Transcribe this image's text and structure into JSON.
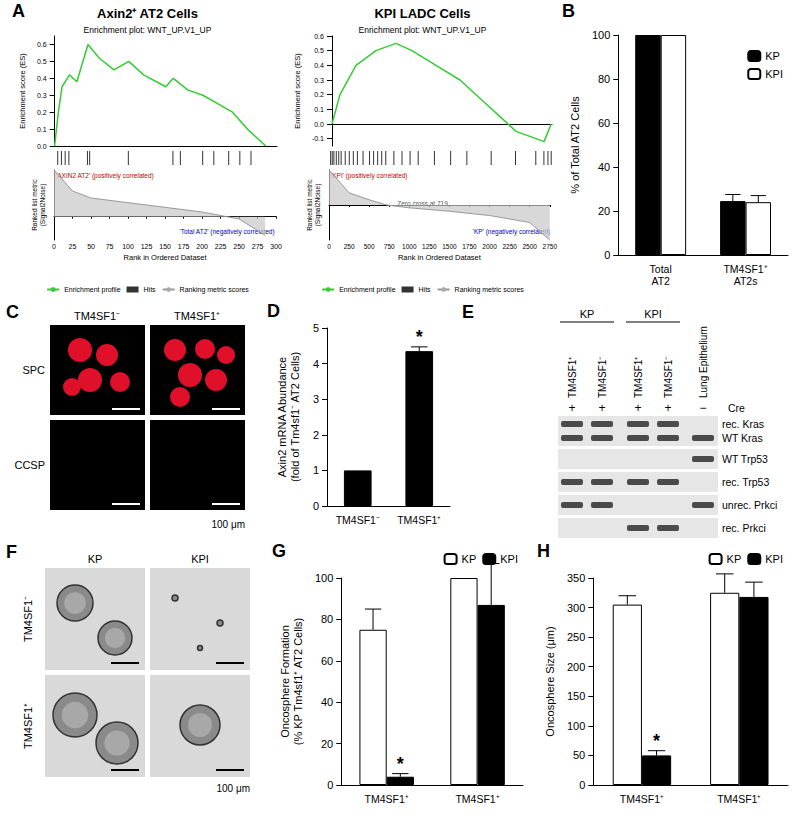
{
  "chart_data": [
    {
      "panel": "A",
      "type": "gsea",
      "heading": "Axin2⁺ AT2 Cells",
      "title": "Enrichment plot: WNT_UP.V1_UP",
      "x": [
        0,
        5,
        10,
        20,
        30,
        45,
        60,
        80,
        100,
        120,
        150,
        160,
        180,
        200,
        220,
        240,
        260,
        285
      ],
      "values": [
        0,
        0.2,
        0.35,
        0.42,
        0.38,
        0.6,
        0.52,
        0.45,
        0.5,
        0.42,
        0.35,
        0.4,
        0.33,
        0.3,
        0.25,
        0.2,
        0.1,
        0
      ],
      "hits": [
        5,
        10,
        15,
        20,
        45,
        48,
        100,
        160,
        170,
        200,
        215,
        235,
        250,
        265
      ],
      "metric_x": [
        0,
        25,
        50,
        100,
        150,
        200,
        250,
        285
      ],
      "metric": [
        1,
        0.55,
        0.4,
        0.3,
        0.2,
        0.1,
        -0.05,
        -0.4
      ],
      "metric_lim": [
        -0.5,
        1
      ],
      "xlim": [
        0,
        300
      ],
      "xticks": [
        0,
        25,
        50,
        75,
        100,
        125,
        150,
        175,
        200,
        225,
        250,
        275,
        300
      ],
      "ylim": [
        0,
        0.65
      ],
      "yticks": [
        {
          "value": 0,
          "label": "0.0"
        },
        {
          "value": 0.1,
          "label": "0.1"
        },
        {
          "value": 0.2,
          "label": "0.2"
        },
        {
          "value": 0.3,
          "label": "0.3"
        },
        {
          "value": 0.4,
          "label": "0.4"
        },
        {
          "value": 0.5,
          "label": "0.5"
        },
        {
          "value": 0.6,
          "label": "0.6"
        }
      ],
      "xlabel": "Rank in Ordered Dataset",
      "ylabel": "Enrichment score (ES)",
      "metric_label": "Ranked list metric\n(Signal2Noise)",
      "legend_labels": [
        "Enrichment profile",
        "Hits",
        "Ranking metric scores"
      ],
      "pos_label": "'AXIN2 AT2' (positively correlated)",
      "neg_label": "'Total AT2' (negatively correlated)",
      "color": "#33cc33",
      "grid": false
    },
    {
      "type": "gsea",
      "heading": "KPI LADC Cells",
      "title": "Enrichment plot: WNT_UP.V1_UP",
      "x": [
        0,
        100,
        300,
        550,
        800,
        1000,
        1300,
        1600,
        1900,
        2100,
        2300,
        2550,
        2650,
        2740
      ],
      "values": [
        0,
        0.2,
        0.4,
        0.5,
        0.55,
        0.5,
        0.4,
        0.3,
        0.15,
        0.05,
        -0.05,
        -0.1,
        -0.12,
        0
      ],
      "hits": [
        20,
        40,
        60,
        90,
        120,
        150,
        200,
        250,
        300,
        350,
        420,
        500,
        550,
        600,
        650,
        700,
        800,
        900,
        1000,
        1100,
        1300,
        1500,
        1700,
        2000,
        2300,
        2550,
        2650,
        2700,
        2740
      ],
      "metric_x": [
        0,
        250,
        500,
        719,
        1000,
        1500,
        2000,
        2500,
        2750
      ],
      "metric": [
        1,
        0.35,
        0.15,
        0,
        -0.08,
        -0.18,
        -0.3,
        -0.5,
        -1
      ],
      "metric_lim": [
        -1,
        1
      ],
      "xlim": [
        0,
        2750
      ],
      "xticks": [
        0,
        250,
        500,
        750,
        1000,
        1250,
        1500,
        1750,
        2000,
        2250,
        2500,
        2750
      ],
      "ylim": [
        -0.15,
        0.6
      ],
      "yticks": [
        {
          "value": -0.1,
          "label": "-0.1"
        },
        {
          "value": 0,
          "label": "0.0"
        },
        {
          "value": 0.1,
          "label": "0.1"
        },
        {
          "value": 0.2,
          "label": "0.2"
        },
        {
          "value": 0.3,
          "label": "0.3"
        },
        {
          "value": 0.4,
          "label": "0.4"
        },
        {
          "value": 0.5,
          "label": "0.5"
        },
        {
          "value": 0.6,
          "label": "0.6"
        }
      ],
      "xlabel": "Rank in Ordered Dataset",
      "ylabel": "Enrichment score (ES)",
      "metric_label": "Ranked list metric\n(Signal2Noise)",
      "legend_labels": [
        "Enrichment profile",
        "Hits",
        "Ranking metric scores"
      ],
      "pos_label": "'KPI' (positively correlated)",
      "neg_label": "'KP' (negatively correlated)",
      "zero_cross": "Zero cross at 719",
      "color": "#33cc33",
      "grid": false
    },
    {
      "panel": "B",
      "type": "bar",
      "categories": [
        "Total\nAT2",
        "TM4SF1⁺\nAT2s"
      ],
      "series": [
        {
          "name": "KP",
          "color": "#000000",
          "values": [
            100,
            24.5
          ],
          "errors": [
            0,
            3
          ]
        },
        {
          "name": "KPI",
          "color": "#ffffff",
          "values": [
            100,
            24
          ],
          "errors": [
            0,
            3
          ]
        }
      ],
      "ylabel": "% of Total AT2 Cells",
      "ylim": [
        0,
        100
      ],
      "yticks": [
        0,
        20,
        40,
        60,
        80,
        100
      ],
      "legend": "upper right",
      "grid": false
    },
    {
      "panel": "D",
      "type": "bar",
      "categories": [
        "TM4SF1⁻",
        "TM4SF1⁺"
      ],
      "values": [
        1,
        4.35
      ],
      "errors": [
        0,
        0.12
      ],
      "color": "#000000",
      "annotations": [
        {
          "text": "*",
          "index": 1
        }
      ],
      "ylabel": "Axin2 mRNA Abundance\n(fold of Tm4sf1⁻ AT2 Cells)",
      "ylim": [
        0,
        5
      ],
      "yticks": [
        0,
        1,
        2,
        3,
        4,
        5
      ],
      "grid": false
    },
    {
      "panel": "G",
      "type": "bar",
      "categories": [
        "TM4SF1⁺",
        "TM4SF1⁺"
      ],
      "series": [
        {
          "name": "KP",
          "color": "#ffffff",
          "values": [
            75,
            100
          ],
          "errors": [
            10,
            0
          ]
        },
        {
          "name": "KPI",
          "color": "#000000",
          "values": [
            4,
            87
          ],
          "errors": [
            1.5,
            20
          ]
        }
      ],
      "annotations": [
        {
          "text": "*",
          "series": "KPI",
          "index": 0
        }
      ],
      "ylabel": "Oncosphere Formation\n(% KP Tm4sf1⁺ AT2 Cells)",
      "ylim": [
        0,
        100
      ],
      "yticks": [
        0,
        20,
        40,
        60,
        80,
        100
      ],
      "legend": "upper right",
      "grid": false
    },
    {
      "panel": "H",
      "type": "bar",
      "categories": [
        "TM4SF1⁺",
        "TM4SF1⁺"
      ],
      "series": [
        {
          "name": "KP",
          "color": "#ffffff",
          "values": [
            305,
            325
          ],
          "errors": [
            15,
            32
          ]
        },
        {
          "name": "KPI",
          "color": "#000000",
          "values": [
            50,
            318
          ],
          "errors": [
            8,
            25
          ]
        }
      ],
      "annotations": [
        {
          "text": "*",
          "series": "KPI",
          "index": 0
        }
      ],
      "ylabel": "Oncosphere Size (μm)",
      "ylim": [
        0,
        350
      ],
      "yticks": [
        0,
        50,
        100,
        150,
        200,
        250,
        300,
        350
      ],
      "legend": "upper right",
      "grid": false
    }
  ],
  "panels": {
    "C": {
      "letter": "C",
      "columns": [
        "TM4SF1⁻",
        "TM4SF1⁺"
      ],
      "rows": [
        "SPC",
        "CCSP"
      ],
      "scale_bar": "100 μm"
    },
    "E": {
      "letter": "E",
      "groups": [
        {
          "label": "KP",
          "lanes": [
            0,
            1
          ]
        },
        {
          "label": "KPI",
          "lanes": [
            2,
            3
          ]
        }
      ],
      "lanes": [
        "TM4SF1⁺",
        "TM4SF1⁻",
        "TM4SF1⁺",
        "TM4SF1⁻",
        "Lung Epithelium"
      ],
      "cre_label": "Cre",
      "cre": [
        "+",
        "+",
        "+",
        "+",
        "−"
      ],
      "gel": [
        {
          "labels": [
            "rec. Kras",
            "WT Kras"
          ],
          "bands": [
            [
              1,
              1,
              1,
              1,
              0
            ],
            [
              1,
              1,
              1,
              1,
              1
            ]
          ]
        },
        {
          "labels": [
            "WT Trp53"
          ],
          "bands": [
            [
              0,
              0,
              0,
              0,
              1
            ]
          ]
        },
        {
          "labels": [
            "rec. Trp53"
          ],
          "bands": [
            [
              1,
              1,
              1,
              1,
              0
            ]
          ]
        },
        {
          "labels": [
            "unrec. Prkci"
          ],
          "bands": [
            [
              1,
              1,
              0,
              0,
              1
            ]
          ]
        },
        {
          "labels": [
            "rec. Prkci"
          ],
          "bands": [
            [
              0,
              0,
              1,
              1,
              0
            ]
          ]
        }
      ]
    },
    "F": {
      "letter": "F",
      "columns": [
        "KP",
        "KPI"
      ],
      "rows": [
        "TM4SF1⁻",
        "TM4SF1⁺"
      ],
      "scale_bar": "100 μm"
    }
  }
}
